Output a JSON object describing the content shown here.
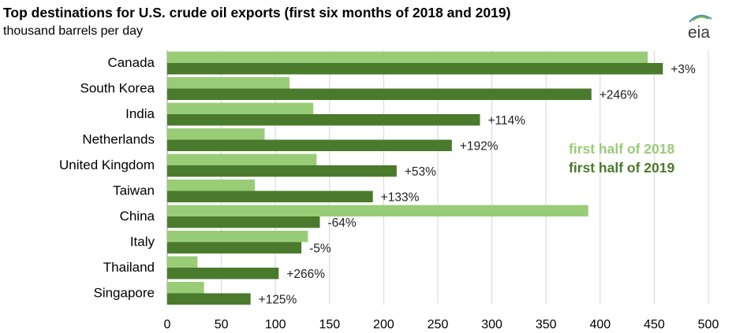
{
  "title": "Top destinations for U.S. crude oil exports (first six months of 2018 and 2019)",
  "subtitle": "thousand barrels per day",
  "logo": {
    "text": "eia",
    "icon": "eia-logo-icon"
  },
  "colors": {
    "series_2018": "#99cc77",
    "series_2019": "#4a7a2c",
    "grid": "#d4d4d4",
    "axis": "#999999"
  },
  "chart_data": {
    "type": "bar",
    "orientation": "horizontal",
    "ylabel": "thousand barrels per day",
    "categories": [
      "Canada",
      "South Korea",
      "India",
      "Netherlands",
      "United Kingdom",
      "Taiwan",
      "China",
      "Italy",
      "Thailand",
      "Singapore"
    ],
    "series": [
      {
        "name": "first half of 2018",
        "color": "#99cc77",
        "values": [
          444,
          113,
          135,
          90,
          138,
          81,
          389,
          130,
          28,
          34
        ]
      },
      {
        "name": "first half of 2019",
        "color": "#4a7a2c",
        "values": [
          458,
          392,
          289,
          263,
          212,
          190,
          141,
          124,
          103,
          77
        ]
      }
    ],
    "change_labels": [
      "+3%",
      "+246%",
      "+114%",
      "+192%",
      "+53%",
      "+133%",
      "-64%",
      "-5%",
      "+266%",
      "+125%"
    ],
    "xlim": [
      0,
      500
    ],
    "xticks": [
      "0",
      "50",
      "100",
      "150",
      "200",
      "250",
      "300",
      "350",
      "400",
      "450",
      "500"
    ],
    "grid": true,
    "legend_position": "right"
  }
}
